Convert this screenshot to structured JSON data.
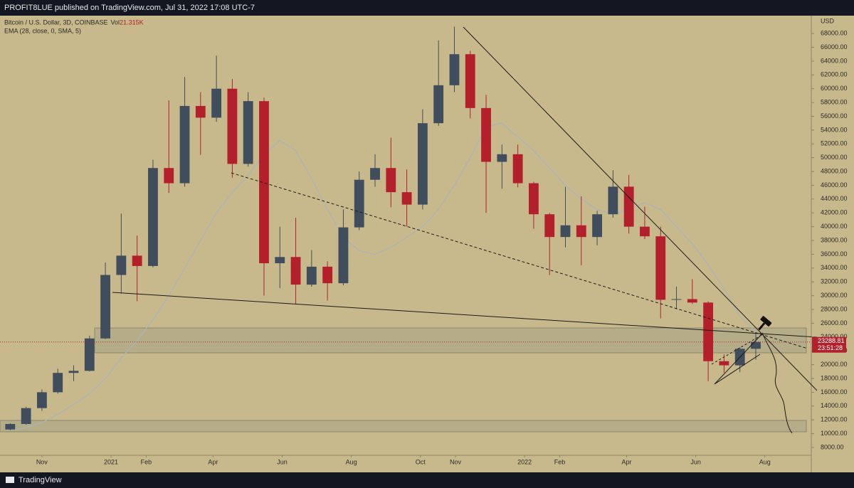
{
  "header": {
    "publisher": "PROFIT8LUE published on TradingView.com, Jul 31, 2022 17:08 UTC-7",
    "footer": "TradingView"
  },
  "chart_data": {
    "type": "candlestick",
    "title": "Bitcoin / U.S. Dollar, 3D, COINBASE",
    "volume_label": "Vol",
    "volume": "21.315K",
    "y_axis_label": "USD",
    "countdown": "23:51:28",
    "up_color": "#3f4d5c",
    "down_color": "#b3202b",
    "x": [
      "2020-10-04",
      "2020-10-18",
      "2020-11-01",
      "2020-11-15",
      "2020-11-29",
      "2020-12-13",
      "2020-12-27",
      "2021-01-10",
      "2021-01-24",
      "2021-02-07",
      "2021-02-21",
      "2021-03-07",
      "2021-03-21",
      "2021-04-04",
      "2021-04-18",
      "2021-05-02",
      "2021-05-16",
      "2021-05-30",
      "2021-06-13",
      "2021-06-27",
      "2021-07-11",
      "2021-07-25",
      "2021-08-08",
      "2021-08-22",
      "2021-09-05",
      "2021-09-19",
      "2021-10-03",
      "2021-10-17",
      "2021-10-31",
      "2021-11-14",
      "2021-11-28",
      "2021-12-12",
      "2021-12-26",
      "2022-01-09",
      "2022-01-23",
      "2022-02-06",
      "2022-02-20",
      "2022-03-06",
      "2022-03-20",
      "2022-04-03",
      "2022-04-17",
      "2022-05-01",
      "2022-05-15",
      "2022-05-29",
      "2022-06-12",
      "2022-06-26",
      "2022-07-10",
      "2022-07-24"
    ],
    "candles": [
      [
        10600,
        11500,
        10500,
        11400
      ],
      [
        11400,
        13900,
        11300,
        13700
      ],
      [
        13700,
        16400,
        13300,
        16000
      ],
      [
        16000,
        19400,
        15800,
        18800
      ],
      [
        18800,
        19900,
        17600,
        19100
      ],
      [
        19100,
        24200,
        19000,
        23800
      ],
      [
        23800,
        34800,
        23700,
        33000
      ],
      [
        33000,
        41900,
        30300,
        35800
      ],
      [
        35800,
        38700,
        29200,
        34300
      ],
      [
        34300,
        49700,
        34100,
        48500
      ],
      [
        48500,
        58300,
        44900,
        46300
      ],
      [
        46300,
        61700,
        45800,
        57500
      ],
      [
        57500,
        59500,
        50400,
        55800
      ],
      [
        55800,
        64800,
        55200,
        60000
      ],
      [
        60000,
        61400,
        47100,
        49100
      ],
      [
        49100,
        59500,
        48700,
        58200
      ],
      [
        58200,
        58700,
        30000,
        34700
      ],
      [
        34700,
        40000,
        31100,
        35600
      ],
      [
        35600,
        41300,
        28800,
        31600
      ],
      [
        31600,
        36600,
        31300,
        34200
      ],
      [
        34200,
        35000,
        29300,
        31800
      ],
      [
        31800,
        42500,
        31500,
        39900
      ],
      [
        39900,
        48000,
        39500,
        46800
      ],
      [
        46800,
        50500,
        45800,
        48500
      ],
      [
        48500,
        52900,
        42800,
        45000
      ],
      [
        45000,
        48300,
        40000,
        43200
      ],
      [
        43200,
        57000,
        42500,
        55000
      ],
      [
        55000,
        67000,
        54600,
        60500
      ],
      [
        60500,
        69000,
        59500,
        65000
      ],
      [
        65000,
        65500,
        55700,
        57200
      ],
      [
        57200,
        59100,
        42000,
        49400
      ],
      [
        49400,
        51900,
        45500,
        50500
      ],
      [
        50500,
        51900,
        45700,
        46300
      ],
      [
        46300,
        46500,
        39700,
        41800
      ],
      [
        41800,
        42000,
        33000,
        38500
      ],
      [
        38500,
        45800,
        37000,
        40200
      ],
      [
        40200,
        44400,
        34400,
        38500
      ],
      [
        38500,
        42300,
        37300,
        41800
      ],
      [
        41800,
        48200,
        41300,
        45800
      ],
      [
        45800,
        47500,
        39000,
        40000
      ],
      [
        40000,
        42900,
        38200,
        38600
      ],
      [
        38600,
        40000,
        26700,
        29400
      ],
      [
        29400,
        31300,
        28000,
        29500
      ],
      [
        29500,
        32400,
        28800,
        29000
      ],
      [
        29000,
        29200,
        17600,
        20500
      ],
      [
        20500,
        21500,
        18800,
        19900
      ],
      [
        19900,
        22500,
        18900,
        22300
      ],
      [
        22300,
        24700,
        20700,
        23288.81
      ]
    ],
    "series": [
      {
        "name": "EMA (28, close, 0, SMA, 5)",
        "color": "#a9b4be",
        "values": [
          10500,
          10900,
          11600,
          12800,
          14200,
          15800,
          18000,
          21000,
          23500,
          26500,
          30000,
          34000,
          38000,
          42000,
          45000,
          47500,
          50500,
          52500,
          51000,
          47000,
          42500,
          38500,
          36500,
          36000,
          37000,
          38500,
          40000,
          42500,
          46000,
          50000,
          54500,
          55000,
          53000,
          51000,
          48500,
          46000,
          44000,
          42500,
          41800,
          42500,
          43500,
          42500,
          40000,
          37500,
          34500,
          31000,
          27000,
          24800
        ]
      }
    ],
    "xlim": [
      "2020-09-25",
      "2022-09-11"
    ],
    "ylim": [
      5830,
      70590
    ],
    "xticks": [
      {
        "value": "2020-11-01",
        "label": "Nov"
      },
      {
        "value": "2021-01-01",
        "label": "2021"
      },
      {
        "value": "2021-02-01",
        "label": "Feb"
      },
      {
        "value": "2021-04-01",
        "label": "Apr"
      },
      {
        "value": "2021-06-01",
        "label": "Jun"
      },
      {
        "value": "2021-08-01",
        "label": "Aug"
      },
      {
        "value": "2021-10-01",
        "label": "Oct"
      },
      {
        "value": "2021-11-01",
        "label": "Nov"
      },
      {
        "value": "2022-01-01",
        "label": "2022"
      },
      {
        "value": "2022-02-01",
        "label": "Feb"
      },
      {
        "value": "2022-04-01",
        "label": "Apr"
      },
      {
        "value": "2022-06-01",
        "label": "Jun"
      },
      {
        "value": "2022-08-01",
        "label": "Aug"
      }
    ],
    "yticks": [
      {
        "value": 8000,
        "label": "8000.00"
      },
      {
        "value": 10000,
        "label": "10000.00"
      },
      {
        "value": 12000,
        "label": "12000.00"
      },
      {
        "value": 14000,
        "label": "14000.00"
      },
      {
        "value": 16000,
        "label": "16000.00"
      },
      {
        "value": 18000,
        "label": "18000.00"
      },
      {
        "value": 20000,
        "label": "20000.00"
      },
      {
        "value": 22000,
        "label": "22000.00"
      },
      {
        "value": 24000,
        "label": "24000.00"
      },
      {
        "value": 26000,
        "label": "26000.00"
      },
      {
        "value": 28000,
        "label": "28000.00"
      },
      {
        "value": 30000,
        "label": "30000.00"
      },
      {
        "value": 32000,
        "label": "32000.00"
      },
      {
        "value": 34000,
        "label": "34000.00"
      },
      {
        "value": 36000,
        "label": "36000.00"
      },
      {
        "value": 38000,
        "label": "38000.00"
      },
      {
        "value": 40000,
        "label": "40000.00"
      },
      {
        "value": 42000,
        "label": "42000.00"
      },
      {
        "value": 44000,
        "label": "44000.00"
      },
      {
        "value": 46000,
        "label": "46000.00"
      },
      {
        "value": 48000,
        "label": "48000.00"
      },
      {
        "value": 50000,
        "label": "50000.00"
      },
      {
        "value": 52000,
        "label": "52000.00"
      },
      {
        "value": 54000,
        "label": "54000.00"
      },
      {
        "value": 56000,
        "label": "56000.00"
      },
      {
        "value": 58000,
        "label": "58000.00"
      },
      {
        "value": 60000,
        "label": "60000.00"
      },
      {
        "value": 62000,
        "label": "62000.00"
      },
      {
        "value": 64000,
        "label": "64000.00"
      },
      {
        "value": 66000,
        "label": "66000.00"
      },
      {
        "value": 68000,
        "label": "68000.00"
      }
    ]
  }
}
